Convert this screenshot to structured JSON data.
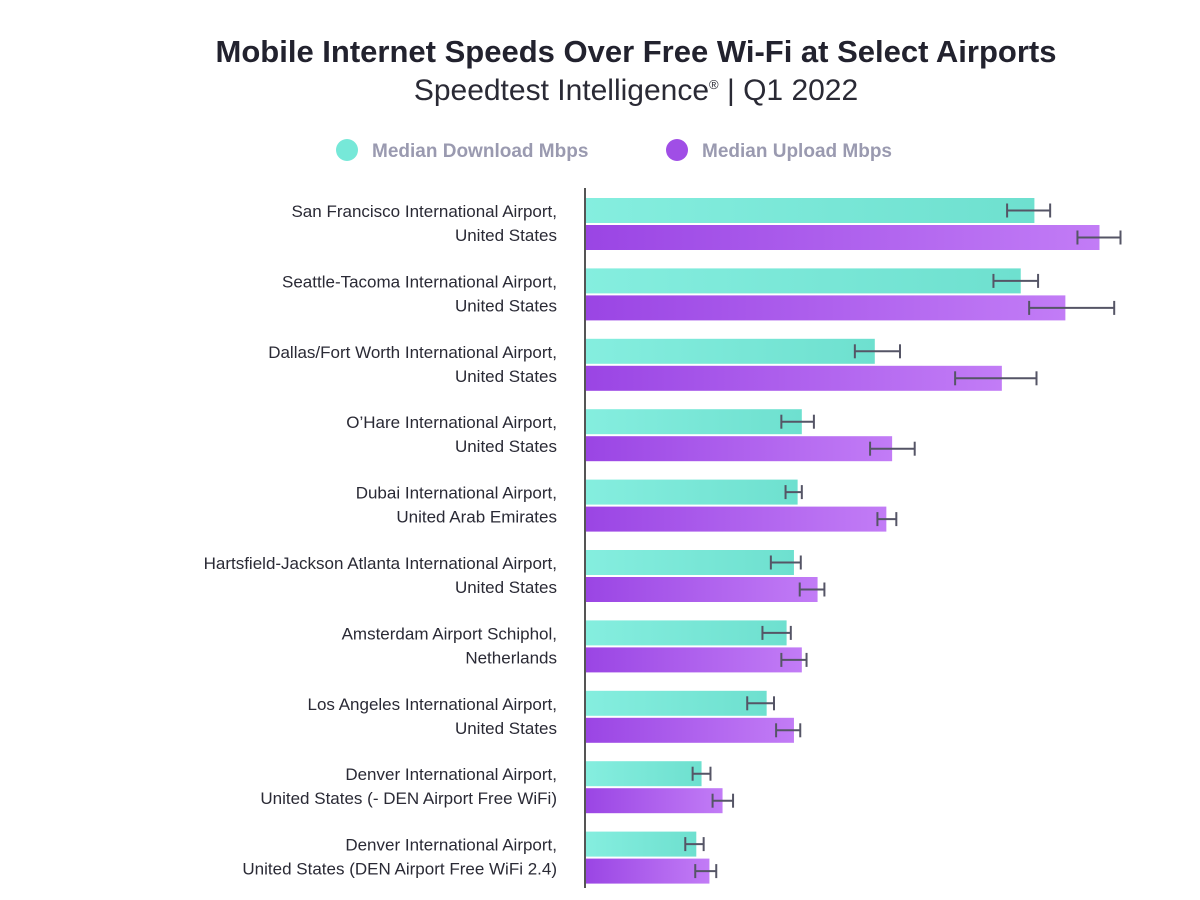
{
  "chart_data": {
    "type": "bar",
    "orientation": "horizontal",
    "title": "Mobile Internet Speeds Over Free Wi-Fi at Select Airports",
    "subtitle": "Speedtest Intelligence® | Q1 2022",
    "legend_position": "top",
    "grid": false,
    "categories": [
      [
        "San Francisco International Airport,",
        "United States"
      ],
      [
        "Seattle-Tacoma International Airport,",
        "United States"
      ],
      [
        "Dallas/Fort Worth International Airport,",
        "United States"
      ],
      [
        "O’Hare International Airport,",
        "United States"
      ],
      [
        "Dubai International Airport,",
        "United Arab Emirates"
      ],
      [
        "Hartsfield-Jackson Atlanta International Airport,",
        "United States"
      ],
      [
        "Amsterdam Airport Schiphol,",
        "Netherlands"
      ],
      [
        "Los Angeles International Airport,",
        "United States"
      ],
      [
        "Denver International Airport,",
        "United States (- DEN Airport Free WiFi)"
      ],
      [
        "Denver International Airport,",
        "United States (DEN Airport Free WiFi 2.4)"
      ]
    ],
    "xlim": [
      0,
      100
    ],
    "series": [
      {
        "name": "Median Download Mbps",
        "color": "#76e8d8",
        "values": [
          85.6,
          83.0,
          55.2,
          41.3,
          40.5,
          39.8,
          38.4,
          34.6,
          22.2,
          21.2
        ],
        "err_low": [
          80.4,
          77.8,
          51.4,
          37.4,
          38.2,
          35.4,
          33.8,
          30.9,
          20.5,
          19.1
        ],
        "err_high": [
          88.6,
          86.3,
          60.0,
          43.6,
          41.3,
          41.1,
          39.2,
          36.0,
          23.9,
          22.6
        ]
      },
      {
        "name": "Median Upload Mbps",
        "color": "#a04ee6",
        "values": [
          98.0,
          91.5,
          79.4,
          58.5,
          57.4,
          44.3,
          41.3,
          39.8,
          26.2,
          23.7
        ],
        "err_low": [
          93.8,
          84.6,
          70.5,
          54.3,
          55.7,
          40.9,
          37.4,
          36.4,
          24.3,
          21.0
        ],
        "err_high": [
          102.0,
          100.8,
          86.0,
          62.8,
          59.3,
          45.6,
          42.2,
          41.0,
          28.2,
          25.0
        ]
      }
    ]
  },
  "colors": {
    "download_gradient_start": "#85eedf",
    "download_gradient_end": "#6ee0cf",
    "upload_gradient_start": "#9a45e4",
    "upload_gradient_end": "#c27cf6",
    "error_bar": "#555566",
    "axis": "#555555"
  }
}
